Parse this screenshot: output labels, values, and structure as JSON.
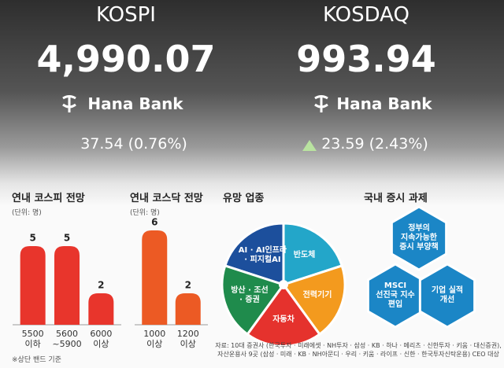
{
  "header": {
    "kospi": {
      "name": "KOSPI",
      "value": "4,990.07",
      "brand": "Hana Bank",
      "change": "37.54 (0.76%)"
    },
    "kosdaq": {
      "name": "KOSDAQ",
      "value": "993.94",
      "brand": "Hana Bank",
      "change": "23.59 (2.43%)"
    }
  },
  "chart_data": [
    {
      "type": "bar",
      "title": "연내 코스피 전망",
      "subtitle": "(단위: 명)",
      "note": "※상단 밴드 기준",
      "categories": [
        "5500\n이하",
        "5600\n~5900",
        "6000\n이상"
      ],
      "values": [
        5,
        5,
        2
      ],
      "color": "#e8352c",
      "ylim": [
        0,
        6
      ]
    },
    {
      "type": "bar",
      "title": "연내 코스닥 전망",
      "subtitle": "(단위: 명)",
      "categories": [
        "1000\n이상",
        "1200\n이상"
      ],
      "values": [
        6,
        2
      ],
      "color": "#ec5a24",
      "ylim": [
        0,
        6
      ]
    },
    {
      "type": "pie",
      "title": "유망 업종",
      "categories": [
        "AI · AI인프라\n· 피지컬AI",
        "반도체",
        "전력기기",
        "자동차",
        "방산 · 조선\n· 증권"
      ],
      "values": [
        20,
        20,
        20,
        20,
        20
      ],
      "colors": [
        "#1c4f9c",
        "#23a6c9",
        "#f39a1e",
        "#e5322d",
        "#1f8b4c"
      ]
    }
  ],
  "issues": {
    "title": "국내 증시 과제",
    "items": [
      "정부의\n지속가능한\n증시 부양책",
      "MSCI\n선진국 지수\n편입",
      "기업 실적\n개선"
    ]
  },
  "source": "자료: 10대 증권사 (한국투자 · 미래에셋 · NH투자 · 삼성 · KB · 하나 · 메리츠 · 신한투자 · 키움 · 대신증권),\n자산운용사 9곳 (삼성 · 미래 · KB · NH아문디 · 우리 · 키움 · 라이프 · 신한 · 한국투자신탁운용) CEO 대상"
}
